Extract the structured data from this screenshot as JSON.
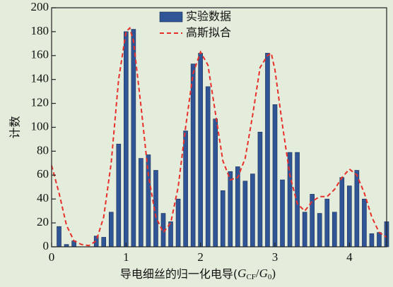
{
  "chart_data": {
    "type": "bar",
    "ylabel": "计数",
    "xlabel_parts": [
      "导电细丝的归一化电导(",
      "G",
      "CF",
      "/",
      "G",
      "0",
      ")"
    ],
    "xlim": [
      0,
      4.5
    ],
    "ylim": [
      0,
      200
    ],
    "xticks": [
      0,
      1,
      2,
      3,
      4
    ],
    "yticks": [
      0,
      20,
      40,
      60,
      80,
      100,
      120,
      140,
      160,
      180,
      200
    ],
    "legend": "top",
    "series": [
      {
        "name": "实验数据",
        "type": "bar",
        "color": "#2f5597",
        "x": [
          0.1,
          0.2,
          0.3,
          0.4,
          0.5,
          0.6,
          0.7,
          0.8,
          0.9,
          1.0,
          1.1,
          1.2,
          1.3,
          1.4,
          1.5,
          1.6,
          1.7,
          1.8,
          1.9,
          2.0,
          2.1,
          2.2,
          2.3,
          2.4,
          2.5,
          2.6,
          2.7,
          2.8,
          2.9,
          3.0,
          3.1,
          3.2,
          3.3,
          3.4,
          3.5,
          3.6,
          3.7,
          3.8,
          3.9,
          4.0,
          4.1,
          4.2,
          4.3,
          4.4,
          4.5
        ],
        "values": [
          17,
          2,
          5,
          0,
          0,
          9,
          8,
          29,
          86,
          180,
          182,
          74,
          77,
          64,
          28,
          21,
          40,
          97,
          153,
          162,
          134,
          107,
          47,
          63,
          67,
          55,
          61,
          96,
          162,
          119,
          56,
          79,
          79,
          29,
          44,
          28,
          40,
          29,
          58,
          51,
          64,
          40,
          11,
          12,
          21
        ]
      },
      {
        "name": "高斯拟合",
        "type": "line",
        "color": "#e8302a",
        "x": [
          0,
          0.1,
          0.2,
          0.3,
          0.4,
          0.5,
          0.6,
          0.7,
          0.8,
          0.9,
          1.0,
          1.05,
          1.1,
          1.2,
          1.3,
          1.4,
          1.5,
          1.6,
          1.7,
          1.8,
          1.9,
          2.0,
          2.1,
          2.2,
          2.3,
          2.4,
          2.5,
          2.6,
          2.7,
          2.8,
          2.9,
          2.95,
          3.0,
          3.1,
          3.2,
          3.3,
          3.4,
          3.5,
          3.6,
          3.7,
          3.8,
          3.9,
          4.0,
          4.1,
          4.2,
          4.3,
          4.4,
          4.5
        ],
        "values": [
          68,
          45,
          18,
          5,
          2,
          1,
          5,
          25,
          70,
          140,
          180,
          183,
          172,
          118,
          60,
          25,
          12,
          20,
          50,
          100,
          145,
          163,
          152,
          112,
          72,
          56,
          58,
          74,
          110,
          150,
          160,
          162,
          148,
          102,
          60,
          36,
          30,
          38,
          42,
          42,
          48,
          58,
          65,
          60,
          45,
          25,
          12,
          8
        ]
      }
    ]
  }
}
